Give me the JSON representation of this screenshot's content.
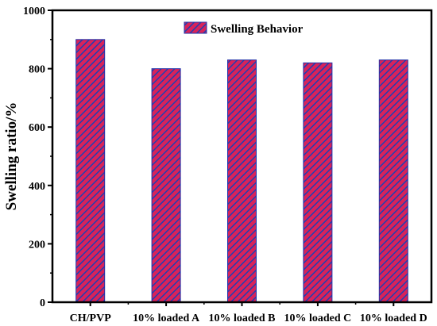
{
  "chart_data": {
    "type": "bar",
    "categories": [
      "CH/PVP",
      "10% loaded A",
      "10% loaded B",
      "10% loaded C",
      "10% loaded D"
    ],
    "series": [
      {
        "name": "Swelling Behavior",
        "values": [
          900,
          800,
          830,
          820,
          830
        ]
      }
    ],
    "title": "",
    "xlabel": "",
    "ylabel": "Swelling ratio/%",
    "ylim": [
      0,
      1000
    ],
    "yticks": [
      "0",
      "200",
      "400",
      "600",
      "800",
      "1000"
    ],
    "grid": false,
    "legend": "top-right",
    "colors": {
      "bar_fill": "#d8235a",
      "bar_hatch": "#1f3fb3",
      "bar_edge": "#2233aa",
      "axis": "#000000"
    }
  }
}
